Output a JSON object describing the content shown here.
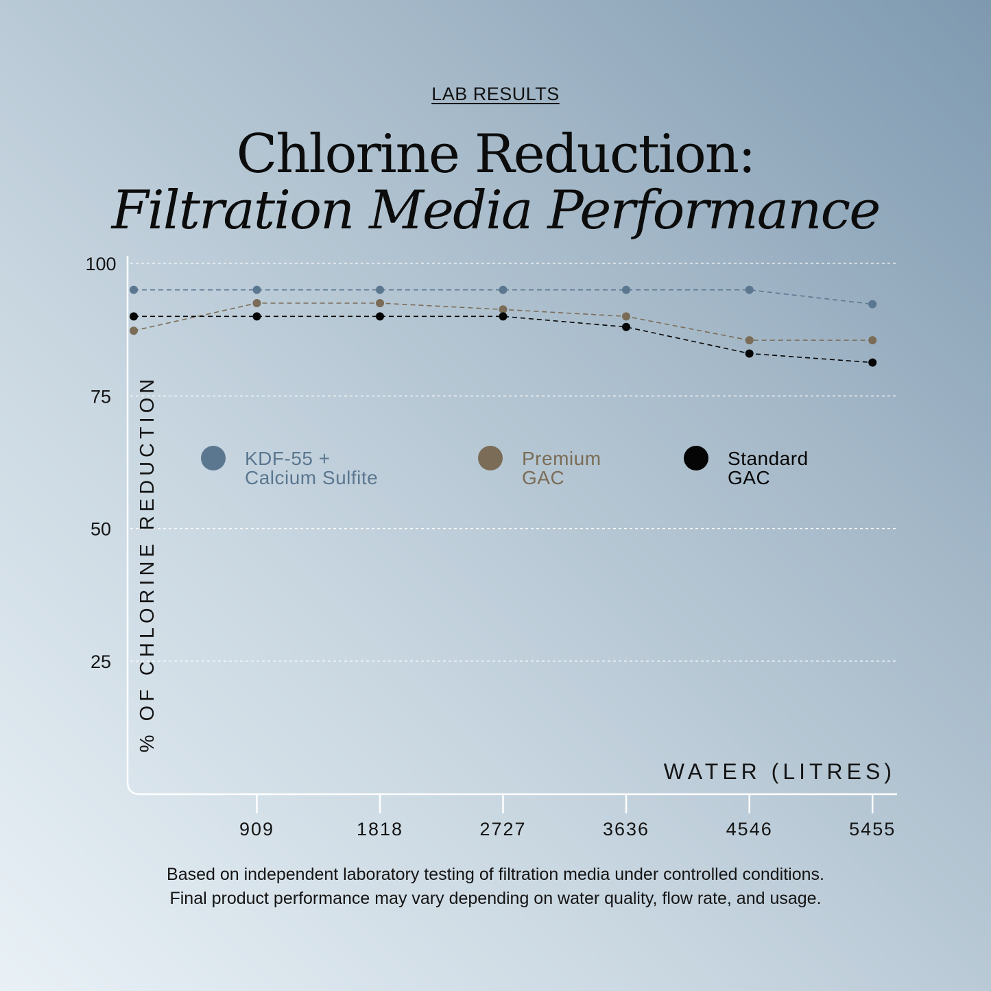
{
  "header": {
    "eyebrow": "LAB RESULTS",
    "title_line1": "Chlorine Reduction:",
    "title_line2": "Filtration Media Performance"
  },
  "chart_data": {
    "type": "line",
    "x": [
      0,
      909,
      1818,
      2727,
      3636,
      4546,
      5455
    ],
    "x_tick_labels": [
      "909",
      "1818",
      "2727",
      "3636",
      "4546",
      "5455"
    ],
    "x_ticks": [
      909,
      1818,
      2727,
      3636,
      4546,
      5455
    ],
    "xlabel": "WATER (LITRES)",
    "ylabel": "% OF CHLORINE REDUCTION",
    "ylim": [
      0,
      100
    ],
    "yticks": [
      100,
      75,
      50,
      25
    ],
    "grid": "horizontal-dashed",
    "legend_position": "middle",
    "series": [
      {
        "name": "KDF-55 + Calcium Sulfite",
        "label_lines": [
          "KDF-55 +",
          "Calcium Sulfite"
        ],
        "color": "#5b7790",
        "values": [
          95,
          95,
          95,
          95,
          95,
          95,
          92.3
        ]
      },
      {
        "name": "Premium GAC",
        "label_lines": [
          "Premium",
          "GAC"
        ],
        "color": "#7a6c56",
        "values": [
          87.3,
          92.5,
          92.5,
          91.3,
          90,
          85.5,
          85.5
        ]
      },
      {
        "name": "Standard GAC",
        "label_lines": [
          "Standard",
          "GAC"
        ],
        "color": "#050505",
        "values": [
          90,
          90,
          90,
          90,
          88,
          83,
          81.3
        ]
      }
    ]
  },
  "footnote": {
    "line1": "Based on independent laboratory testing of filtration media under controlled conditions.",
    "line2": "Final product performance may vary depending on water quality, flow rate, and usage."
  }
}
